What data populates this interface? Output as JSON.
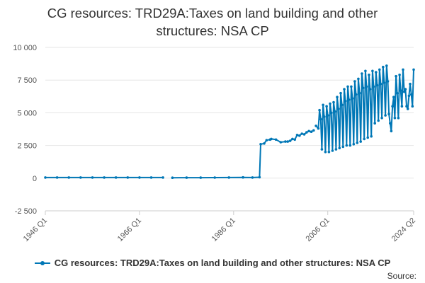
{
  "title_lines": [
    "CG resources: TRD29A:Taxes on land building and other",
    "structures: NSA CP"
  ],
  "legend_label": "CG resources: TRD29A:Taxes on land building and other structures: NSA CP",
  "source_label": "Source:",
  "colors": {
    "series": "#0077b6",
    "grid": "#e6e6e6",
    "axis": "#cccccc"
  },
  "chart_data": {
    "type": "line",
    "title": "CG resources: TRD29A:Taxes on land building and other structures: NSA CP",
    "xlabel": "",
    "ylabel": "",
    "x_range": [
      1946.0,
      2024.25
    ],
    "ylim": [
      -2500,
      10000
    ],
    "y_ticks": [
      -2500,
      0,
      2500,
      5000,
      7500,
      10000
    ],
    "y_tick_labels": [
      "-2 500",
      "0",
      "2 500",
      "5 000",
      "7 500",
      "10 000"
    ],
    "x_ticks": [
      {
        "x": 1946.0,
        "label": "1946 Q1"
      },
      {
        "x": 1966.0,
        "label": "1966 Q1"
      },
      {
        "x": 1986.0,
        "label": "1986 Q1"
      },
      {
        "x": 2006.0,
        "label": "2006 Q1"
      },
      {
        "x": 2024.25,
        "label": "2024 Q2"
      }
    ],
    "grid": true,
    "legend_position": "bottom",
    "series": [
      {
        "name": "CG resources: TRD29A:Taxes on land building and other structures: NSA CP",
        "segments": [
          {
            "x": [
              1946.0,
              1948.5,
              1951.0,
              1953.5,
              1956.0,
              1958.5,
              1961.0,
              1963.5,
              1966.0,
              1968.5,
              1971.0
            ],
            "y": [
              50,
              50,
              50,
              50,
              50,
              50,
              50,
              50,
              50,
              50,
              50
            ]
          },
          {
            "x": [
              1973.0,
              1976.0,
              1979.0,
              1982.0,
              1985.0,
              1988.0,
              1990.0,
              1991.5,
              1991.75,
              1992.5,
              1993.0,
              1993.75,
              1994.0,
              1995.0,
              1996.0,
              1997.0,
              1997.5,
              1998.0,
              1998.5,
              1999.0,
              1999.5,
              2000.0,
              2000.5,
              2001.0,
              2001.5,
              2002.0,
              2002.5,
              2003.0
            ],
            "y": [
              30,
              40,
              40,
              45,
              50,
              60,
              50,
              70,
              2600,
              2650,
              2900,
              2950,
              3000,
              2950,
              2750,
              2800,
              2800,
              2850,
              3000,
              2950,
              3300,
              3250,
              3400,
              3350,
              3500,
              3600,
              3550,
              3650
            ]
          },
          {
            "x": [
              2003.5,
              2004.0,
              2004.25,
              2004.5,
              2004.75,
              2005.0,
              2005.25,
              2005.5,
              2005.75,
              2006.0,
              2006.25,
              2006.5,
              2006.75,
              2007.0,
              2007.25,
              2007.5,
              2007.75,
              2008.0,
              2008.25,
              2008.5,
              2008.75,
              2009.0,
              2009.25,
              2009.5,
              2009.75,
              2010.0,
              2010.25,
              2010.5,
              2010.75,
              2011.0,
              2011.25,
              2011.5,
              2011.75,
              2012.0,
              2012.25,
              2012.5,
              2012.75,
              2013.0,
              2013.25,
              2013.5,
              2013.75,
              2014.0,
              2014.25,
              2014.5,
              2014.75,
              2015.0,
              2015.25,
              2015.5,
              2015.75,
              2016.0,
              2016.25,
              2016.5,
              2016.75,
              2017.0,
              2017.25,
              2017.5,
              2017.75,
              2018.0,
              2018.25,
              2018.5,
              2018.75,
              2019.0,
              2019.25,
              2019.5,
              2019.75,
              2020.0,
              2020.25,
              2020.5,
              2020.75,
              2021.0,
              2021.25,
              2021.5,
              2021.75,
              2022.0,
              2022.25,
              2022.5,
              2022.75,
              2023.0,
              2023.25,
              2023.5,
              2023.75,
              2024.0,
              2024.25
            ],
            "y": [
              4000,
              3800,
              5200,
              4500,
              2200,
              5600,
              4700,
              2000,
              5500,
              4800,
              2000,
              5700,
              5000,
              2100,
              5800,
              5100,
              2200,
              6200,
              5300,
              2300,
              6500,
              5600,
              2400,
              6800,
              5900,
              2500,
              7000,
              6000,
              2500,
              7000,
              6100,
              2600,
              7400,
              6400,
              2700,
              7600,
              6500,
              2800,
              8000,
              6900,
              3000,
              8200,
              7000,
              3100,
              7900,
              6800,
              3200,
              8200,
              7000,
              4200,
              8100,
              7100,
              4400,
              8300,
              7200,
              4600,
              8500,
              7300,
              4800,
              8600,
              7400,
              4900,
              4200,
              3600,
              5500,
              6200,
              4600,
              7800,
              6500,
              4600,
              7900,
              6700,
              5500,
              8300,
              6600,
              6800,
              5500,
              5300,
              6300,
              7200,
              6400,
              5500,
              8300
            ]
          }
        ]
      }
    ]
  }
}
